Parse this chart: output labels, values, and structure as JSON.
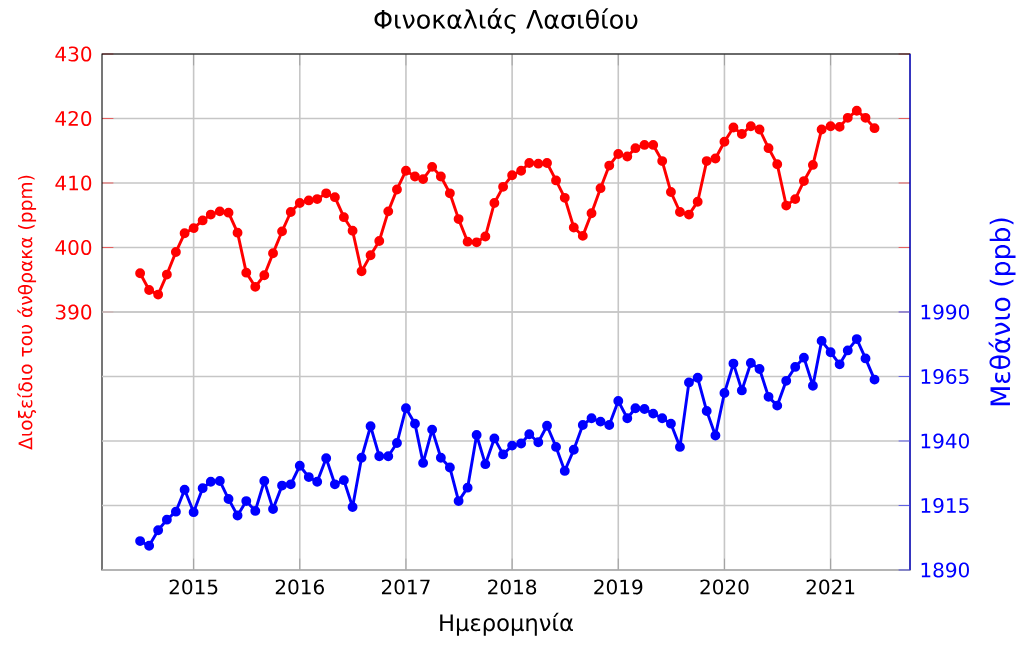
{
  "chart_data": {
    "type": "line",
    "title": "Φινοκαλιάς Λασιθίου",
    "xlabel": "Ημερομηνία",
    "ylabel": "Διοξείδιο του άνθρακα (ppm)",
    "y2label": "Μεθάνιο (ppb)",
    "x": [
      "2014-07",
      "2014-08",
      "2014-09",
      "2014-10",
      "2014-11",
      "2014-12",
      "2015-01",
      "2015-02",
      "2015-03",
      "2015-04",
      "2015-05",
      "2015-06",
      "2015-07",
      "2015-08",
      "2015-09",
      "2015-10",
      "2015-11",
      "2015-12",
      "2016-01",
      "2016-02",
      "2016-03",
      "2016-04",
      "2016-05",
      "2016-06",
      "2016-07",
      "2016-08",
      "2016-09",
      "2016-10",
      "2016-11",
      "2016-12",
      "2017-01",
      "2017-02",
      "2017-03",
      "2017-04",
      "2017-05",
      "2017-06",
      "2017-07",
      "2017-08",
      "2017-09",
      "2017-10",
      "2017-11",
      "2017-12",
      "2018-01",
      "2018-02",
      "2018-03",
      "2018-04",
      "2018-05",
      "2018-06",
      "2018-07",
      "2018-08",
      "2018-09",
      "2018-10",
      "2018-11",
      "2018-12",
      "2019-01",
      "2019-02",
      "2019-03",
      "2019-04",
      "2019-05",
      "2019-06",
      "2019-07",
      "2019-08",
      "2019-09",
      "2019-10",
      "2019-11",
      "2019-12",
      "2020-01",
      "2020-02",
      "2020-03",
      "2020-04",
      "2020-05",
      "2020-06",
      "2020-07",
      "2020-08",
      "2020-09",
      "2020-10",
      "2020-11",
      "2020-12",
      "2021-01",
      "2021-02",
      "2021-03",
      "2021-04",
      "2021-05",
      "2021-06"
    ],
    "series": [
      {
        "color": "#ff0000",
        "axis": "y",
        "values": [
          396.0,
          393.4,
          392.7,
          395.8,
          399.3,
          402.2,
          403.0,
          404.2,
          405.1,
          405.6,
          405.4,
          402.3,
          396.1,
          393.9,
          395.7,
          399.1,
          402.5,
          405.5,
          406.9,
          407.3,
          407.5,
          408.4,
          407.8,
          404.7,
          402.6,
          396.3,
          398.8,
          401.0,
          405.6,
          409.0,
          411.9,
          411.0,
          410.6,
          412.5,
          411.0,
          408.4,
          404.4,
          400.9,
          400.8,
          401.7,
          406.9,
          409.4,
          411.2,
          411.9,
          413.1,
          413.0,
          413.1,
          410.4,
          407.7,
          403.1,
          401.8,
          405.3,
          409.2,
          412.7,
          414.5,
          414.1,
          415.4,
          415.9,
          415.9,
          413.4,
          408.6,
          405.5,
          405.1,
          407.1,
          413.4,
          413.8,
          416.4,
          418.6,
          417.6,
          418.8,
          418.3,
          415.4,
          412.9,
          406.5,
          407.5,
          410.3,
          412.8,
          418.3,
          418.8,
          418.7,
          420.1,
          421.2,
          420.1,
          418.5
        ]
      },
      {
        "color": "#0000ff",
        "axis": "y2",
        "values": [
          1901.2,
          1899.4,
          1905.4,
          1909.5,
          1912.6,
          1921.1,
          1912.4,
          1921.7,
          1924.2,
          1924.5,
          1917.5,
          1911.1,
          1916.7,
          1912.9,
          1924.5,
          1913.6,
          1922.7,
          1923.2,
          1930.4,
          1926.0,
          1924.2,
          1933.3,
          1923.2,
          1924.8,
          1914.4,
          1933.5,
          1945.7,
          1934.1,
          1934.1,
          1939.2,
          1952.7,
          1946.7,
          1931.5,
          1944.4,
          1933.5,
          1929.7,
          1916.7,
          1921.9,
          1942.3,
          1931.0,
          1941.0,
          1934.8,
          1938.2,
          1939.0,
          1942.6,
          1939.5,
          1945.9,
          1937.7,
          1928.4,
          1936.6,
          1946.2,
          1948.8,
          1947.5,
          1946.2,
          1955.5,
          1948.8,
          1952.7,
          1952.4,
          1950.6,
          1948.8,
          1946.7,
          1937.7,
          1962.7,
          1964.5,
          1951.6,
          1942.1,
          1958.6,
          1970.0,
          1959.6,
          1970.2,
          1967.9,
          1957.1,
          1953.7,
          1963.3,
          1968.7,
          1972.3,
          1961.4,
          1978.8,
          1974.4,
          1969.7,
          1975.1,
          1979.5,
          1972.0,
          1963.8
        ]
      }
    ],
    "xlim": [
      "2014-02-20",
      "2021-10-01"
    ],
    "xticks": [
      "2015",
      "2016",
      "2017",
      "2018",
      "2019",
      "2020",
      "2021"
    ],
    "ylim": [
      350,
      430
    ],
    "yticks": [
      390,
      400,
      410,
      420,
      430
    ],
    "y2lim": [
      1890,
      2090
    ],
    "y2ticks": [
      1890,
      1915,
      1940,
      1965,
      1990
    ],
    "grid": true,
    "marker": "circle",
    "line_style": "solid"
  }
}
